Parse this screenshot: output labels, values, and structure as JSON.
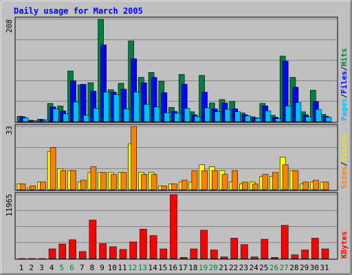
{
  "chart_data": {
    "type": "bar",
    "title": "Daily usage for March 2005",
    "categories": [
      "1",
      "2",
      "3",
      "4",
      "5",
      "6",
      "7",
      "8",
      "9",
      "10",
      "11",
      "12",
      "13",
      "14",
      "15",
      "16",
      "17",
      "18",
      "19",
      "20",
      "21",
      "22",
      "23",
      "24",
      "25",
      "26",
      "27",
      "28",
      "29",
      "30",
      "31"
    ],
    "weekend_days": [
      "5",
      "6",
      "12",
      "13",
      "19",
      "20",
      "26",
      "27"
    ],
    "panels": [
      {
        "id": "hits-files-pages",
        "axis_max_label": "208",
        "ylim": [
          0,
          208
        ],
        "legend": [
          "Pages",
          "/",
          "Files",
          "/",
          "Hits"
        ],
        "series": [
          {
            "name": "Hits",
            "color": "#008040",
            "values": [
              11,
              3,
              5,
              37,
              32,
              103,
              75,
              79,
              208,
              65,
              78,
              164,
              90,
              100,
              82,
              29,
              96,
              20,
              94,
              38,
              45,
              41,
              18,
              10,
              37,
              13,
              133,
              90,
              20,
              64,
              15
            ]
          },
          {
            "name": "Files",
            "color": "#0000ff",
            "values": [
              10,
              2,
              4,
              30,
              22,
              83,
              76,
              62,
              156,
              60,
              66,
              128,
              79,
              90,
              59,
              21,
              76,
              14,
              60,
              26,
              38,
              26,
              14,
              8,
              32,
              9,
              123,
              70,
              14,
              41,
              11
            ]
          },
          {
            "name": "Pages",
            "color": "#00c0ff",
            "values": [
              8,
              2,
              3,
              26,
              16,
              40,
              13,
              27,
              60,
              55,
              26,
              60,
              35,
              30,
              18,
              17,
              27,
              11,
              28,
              20,
              25,
              20,
              12,
              7,
              22,
              6,
              32,
              39,
              10,
              25,
              9
            ]
          }
        ]
      },
      {
        "id": "visits-sites",
        "axis_max_label": "33",
        "ylim": [
          0,
          33
        ],
        "legend": [
          "Sites",
          "/",
          "Visits"
        ],
        "series": [
          {
            "name": "Visits",
            "color": "#ffff00",
            "values": [
              3,
              1,
              4,
              20,
              11,
              10,
              4,
              9,
              9,
              9,
              9,
              24,
              9,
              9,
              2,
              3,
              4,
              4,
              13,
              12,
              10,
              4,
              3,
              4,
              7,
              7,
              17,
              10,
              3,
              4,
              4
            ]
          },
          {
            "name": "Sites",
            "color": "#ff8000",
            "values": [
              3,
              2,
              4,
              22,
              10,
              10,
              5,
              12,
              9,
              8,
              9,
              33,
              8,
              8,
              2,
              3,
              5,
              10,
              10,
              10,
              8,
              10,
              4,
              3,
              8,
              9,
              13,
              10,
              4,
              5,
              4
            ]
          }
        ]
      },
      {
        "id": "kbytes",
        "axis_max_label": "11965",
        "ylim": [
          0,
          11965
        ],
        "legend": [
          "KBytes"
        ],
        "series": [
          {
            "name": "KBytes",
            "color": "#ff0000",
            "values": [
              0,
              0,
              0,
              1800,
              2700,
              3500,
              1300,
              7200,
              2800,
              2200,
              1700,
              3100,
              5500,
              4300,
              1800,
              11965,
              200,
              1800,
              5300,
              1600,
              300,
              3800,
              2600,
              300,
              3600,
              200,
              6200,
              700,
              1600,
              3800,
              1800
            ]
          }
        ]
      }
    ]
  }
}
